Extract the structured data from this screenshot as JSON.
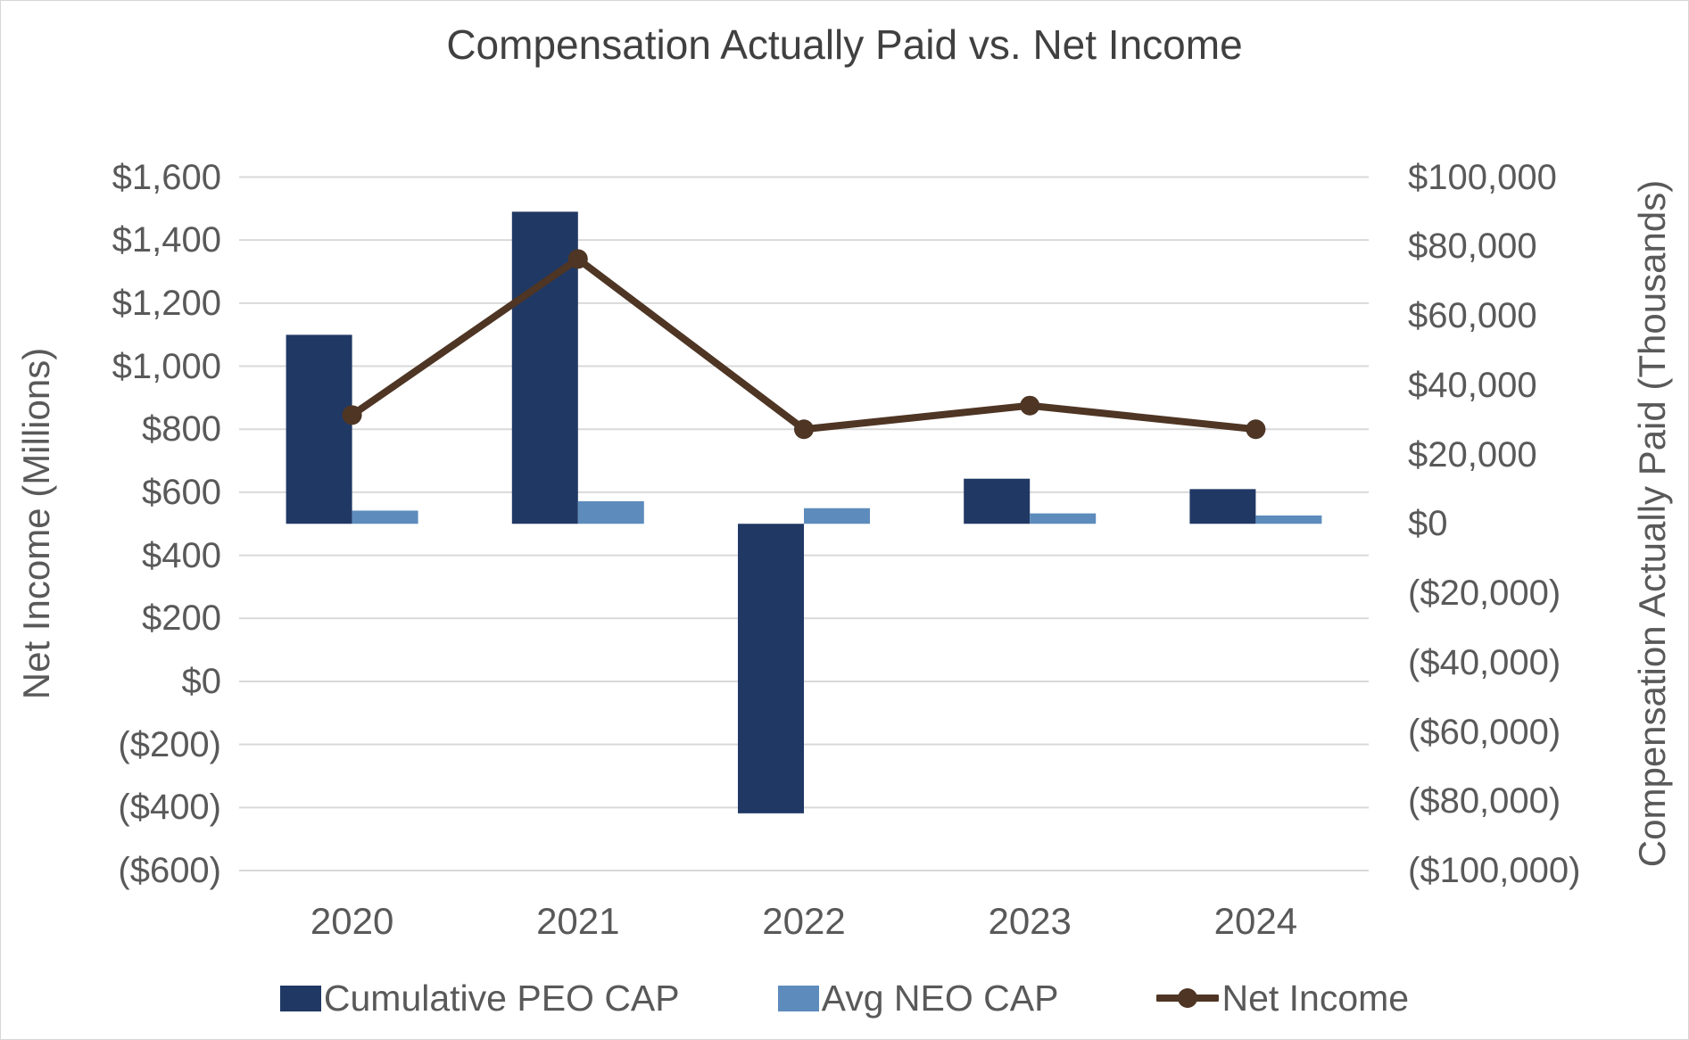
{
  "title": "Compensation Actually Paid vs. Net Income",
  "chart_data": {
    "type": "combo",
    "categories": [
      "2020",
      "2021",
      "2022",
      "2023",
      "2024"
    ],
    "series": [
      {
        "name": "Cumulative PEO CAP",
        "chart_type": "bar",
        "axis": "right",
        "color": "#203864",
        "values": [
          54500,
          90000,
          -83500,
          13000,
          10000
        ]
      },
      {
        "name": "Avg NEO CAP",
        "chart_type": "bar",
        "axis": "right",
        "color": "#5D8CBC",
        "values": [
          3800,
          6500,
          4500,
          3000,
          2400
        ]
      },
      {
        "name": "Net Income",
        "chart_type": "line",
        "axis": "left",
        "color": "#4E3524",
        "values": [
          845,
          1340,
          800,
          875,
          800
        ]
      }
    ],
    "left_axis": {
      "title": "Net Income (Millions)",
      "min": -600,
      "max": 1600,
      "step": 200,
      "tick_labels": [
        "$1,600",
        "$1,400",
        "$1,200",
        "$1,000",
        "$800",
        "$600",
        "$400",
        "$200",
        "$0",
        "($200)",
        "($400)",
        "($600)"
      ]
    },
    "right_axis": {
      "title": "Compensation Actually Paid (Thousands)",
      "min": -100000,
      "max": 100000,
      "step": 20000,
      "tick_labels": [
        "$100,000",
        "$80,000",
        "$60,000",
        "$40,000",
        "$20,000",
        "$0",
        "($20,000)",
        "($40,000)",
        "($60,000)",
        "($80,000)",
        "($100,000)"
      ]
    },
    "legend_position": "bottom",
    "grid": true,
    "colors": {
      "gridline": "#d9d9d9",
      "tick_text": "#595959",
      "title_text": "#404040",
      "background": "#ffffff"
    }
  }
}
